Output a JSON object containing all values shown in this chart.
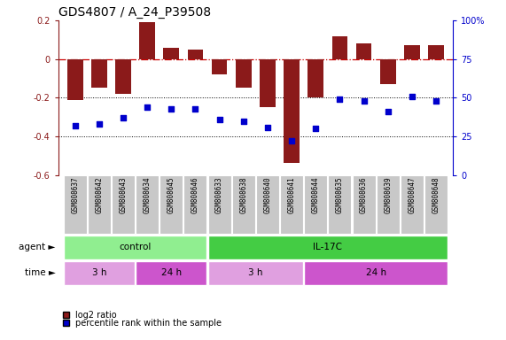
{
  "title": "GDS4807 / A_24_P39508",
  "samples": [
    "GSM808637",
    "GSM808642",
    "GSM808643",
    "GSM808634",
    "GSM808645",
    "GSM808646",
    "GSM808633",
    "GSM808638",
    "GSM808640",
    "GSM808641",
    "GSM808644",
    "GSM808635",
    "GSM808636",
    "GSM808639",
    "GSM808647",
    "GSM808648"
  ],
  "log2_ratio": [
    -0.21,
    -0.15,
    -0.18,
    0.19,
    0.06,
    0.05,
    -0.08,
    -0.15,
    -0.25,
    -0.535,
    -0.2,
    0.12,
    0.08,
    -0.13,
    0.07,
    0.07
  ],
  "percentile": [
    32,
    33,
    37,
    44,
    43,
    43,
    36,
    35,
    31,
    22,
    30,
    49,
    48,
    41,
    51,
    48
  ],
  "ylim_left": [
    -0.6,
    0.2
  ],
  "ylim_right": [
    0,
    100
  ],
  "yticks_left": [
    -0.6,
    -0.4,
    -0.2,
    0.0,
    0.2
  ],
  "yticks_right": [
    0,
    25,
    50,
    75,
    100
  ],
  "bar_color": "#8B1A1A",
  "dot_color": "#0000CC",
  "agent_groups": [
    {
      "label": "control",
      "start": 0,
      "end": 6,
      "color": "#90EE90"
    },
    {
      "label": "IL-17C",
      "start": 6,
      "end": 16,
      "color": "#44CC44"
    }
  ],
  "time_groups": [
    {
      "label": "3 h",
      "start": 0,
      "end": 3,
      "color": "#E0A0E0"
    },
    {
      "label": "24 h",
      "start": 3,
      "end": 6,
      "color": "#CC55CC"
    },
    {
      "label": "3 h",
      "start": 6,
      "end": 10,
      "color": "#E0A0E0"
    },
    {
      "label": "24 h",
      "start": 10,
      "end": 16,
      "color": "#CC55CC"
    }
  ],
  "legend_items": [
    {
      "label": "log2 ratio",
      "color": "#8B1A1A"
    },
    {
      "label": "percentile rank within the sample",
      "color": "#0000CC"
    }
  ],
  "hline_color": "#CC0000",
  "dotline_color": "#000000",
  "title_fontsize": 10,
  "tick_fontsize": 7,
  "label_fontsize": 7.5,
  "gsm_fontsize": 5.5,
  "row_label_fontsize": 7.5
}
